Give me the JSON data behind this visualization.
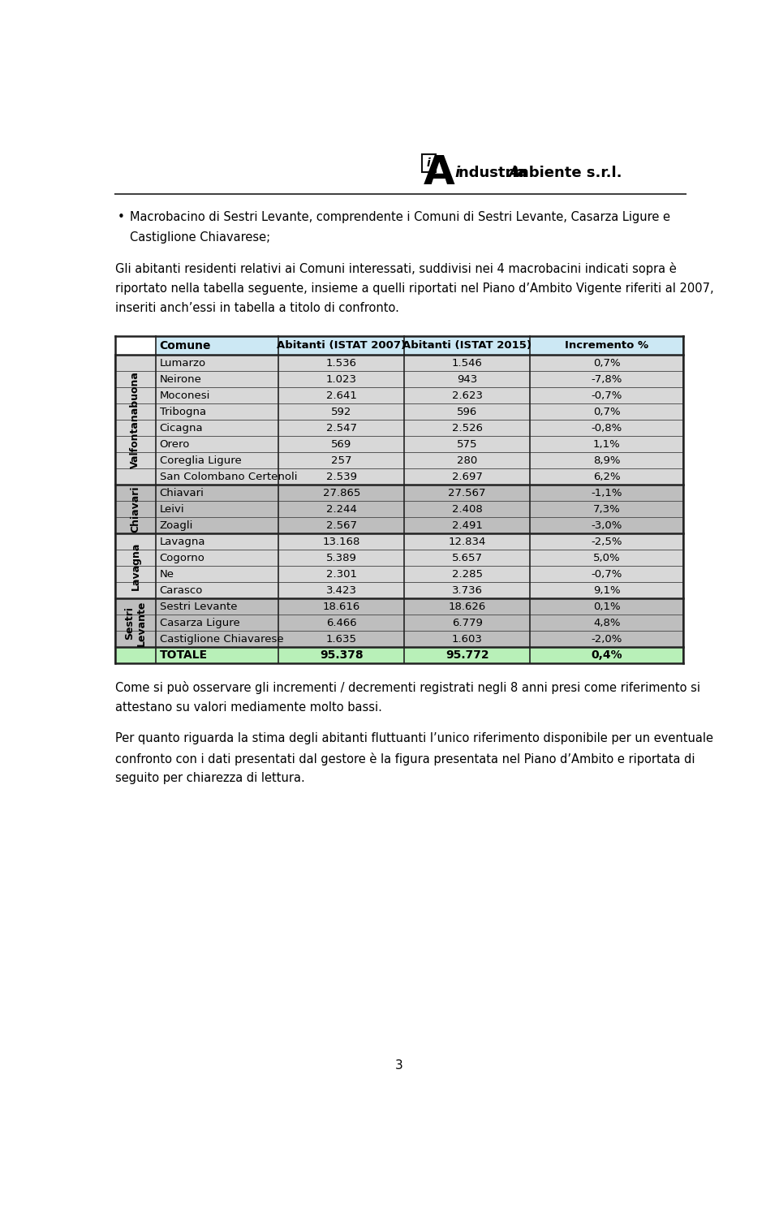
{
  "col_headers": [
    "Comune",
    "Abitanti (ISTAT 2007)",
    "Abitanti (ISTAT 2015)",
    "Incremento %"
  ],
  "header_bg": "#cce8f4",
  "macrobacini": [
    {
      "name": "Valfontanabuona",
      "row_bg": "#d8d8d8",
      "rows": [
        [
          "Lumarzo",
          "1.536",
          "1.546",
          "0,7%"
        ],
        [
          "Neirone",
          "1.023",
          "943",
          "-7,8%"
        ],
        [
          "Moconesi",
          "2.641",
          "2.623",
          "-0,7%"
        ],
        [
          "Tribogna",
          "592",
          "596",
          "0,7%"
        ],
        [
          "Cicagna",
          "2.547",
          "2.526",
          "-0,8%"
        ],
        [
          "Orero",
          "569",
          "575",
          "1,1%"
        ],
        [
          "Coreglia Ligure",
          "257",
          "280",
          "8,9%"
        ],
        [
          "San Colombano Certenoli",
          "2.539",
          "2.697",
          "6,2%"
        ]
      ]
    },
    {
      "name": "Chiavari",
      "row_bg": "#bebebe",
      "rows": [
        [
          "Chiavari",
          "27.865",
          "27.567",
          "-1,1%"
        ],
        [
          "Leivi",
          "2.244",
          "2.408",
          "7,3%"
        ],
        [
          "Zoagli",
          "2.567",
          "2.491",
          "-3,0%"
        ]
      ]
    },
    {
      "name": "Lavagna",
      "row_bg": "#d8d8d8",
      "rows": [
        [
          "Lavagna",
          "13.168",
          "12.834",
          "-2,5%"
        ],
        [
          "Cogorno",
          "5.389",
          "5.657",
          "5,0%"
        ],
        [
          "Ne",
          "2.301",
          "2.285",
          "-0,7%"
        ],
        [
          "Carasco",
          "3.423",
          "3.736",
          "9,1%"
        ]
      ]
    },
    {
      "name": "Sestri\nLevante",
      "row_bg": "#bebebe",
      "rows": [
        [
          "Sestri Levante",
          "18.616",
          "18.626",
          "0,1%"
        ],
        [
          "Casarza Ligure",
          "6.466",
          "6.779",
          "4,8%"
        ],
        [
          "Castiglione Chiavarese",
          "1.635",
          "1.603",
          "-2,0%"
        ]
      ]
    }
  ],
  "totale_row": [
    "TOTALE",
    "95.378",
    "95.772",
    "0,4%"
  ],
  "totale_bg": "#b8f0b8",
  "page_number": "3",
  "bg_color": "#ffffff",
  "table_border_color": "#222222",
  "inner_line_color": "#555555"
}
